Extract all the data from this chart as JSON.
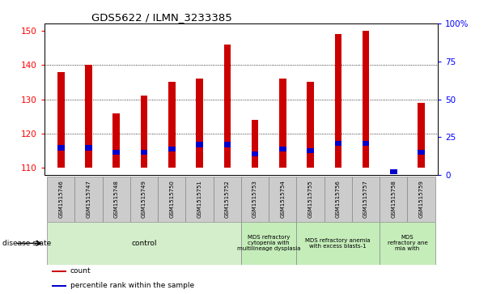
{
  "title": "GDS5622 / ILMN_3233385",
  "samples": [
    "GSM1515746",
    "GSM1515747",
    "GSM1515748",
    "GSM1515749",
    "GSM1515750",
    "GSM1515751",
    "GSM1515752",
    "GSM1515753",
    "GSM1515754",
    "GSM1515755",
    "GSM1515756",
    "GSM1515757",
    "GSM1515758",
    "GSM1515759"
  ],
  "counts": [
    138,
    140,
    126,
    131,
    135,
    136,
    146,
    124,
    136,
    135,
    149,
    150,
    110,
    129
  ],
  "percentile_ranks": [
    18,
    18,
    15,
    15,
    17,
    20,
    20,
    14,
    17,
    16,
    21,
    21,
    2,
    15
  ],
  "ylim_left": [
    108,
    152
  ],
  "ylim_right": [
    0,
    100
  ],
  "yticks_left": [
    110,
    120,
    130,
    140,
    150
  ],
  "yticks_right": [
    0,
    25,
    50,
    75,
    100
  ],
  "bar_color": "#cc0000",
  "percentile_color": "#0000cc",
  "bar_bottom": 110,
  "bg_color": "#ffffff",
  "tick_area_bg": "#cccccc",
  "disease_groups": [
    {
      "label": "control",
      "start": 0,
      "end": 7,
      "color": "#d4eecb"
    },
    {
      "label": "MDS refractory\ncytopenia with\nmultilineage dysplasia",
      "start": 7,
      "end": 9,
      "color": "#c8edba"
    },
    {
      "label": "MDS refractory anemia\nwith excess blasts-1",
      "start": 9,
      "end": 12,
      "color": "#c8edba"
    },
    {
      "label": "MDS\nrefractory ane\nmia with",
      "start": 12,
      "end": 14,
      "color": "#c8edba"
    }
  ],
  "disease_state_label": "disease state",
  "legend_items": [
    {
      "color": "#cc0000",
      "label": "count"
    },
    {
      "color": "#0000cc",
      "label": "percentile rank within the sample"
    }
  ],
  "bar_width": 0.25,
  "pct_bar_height": 1.5
}
